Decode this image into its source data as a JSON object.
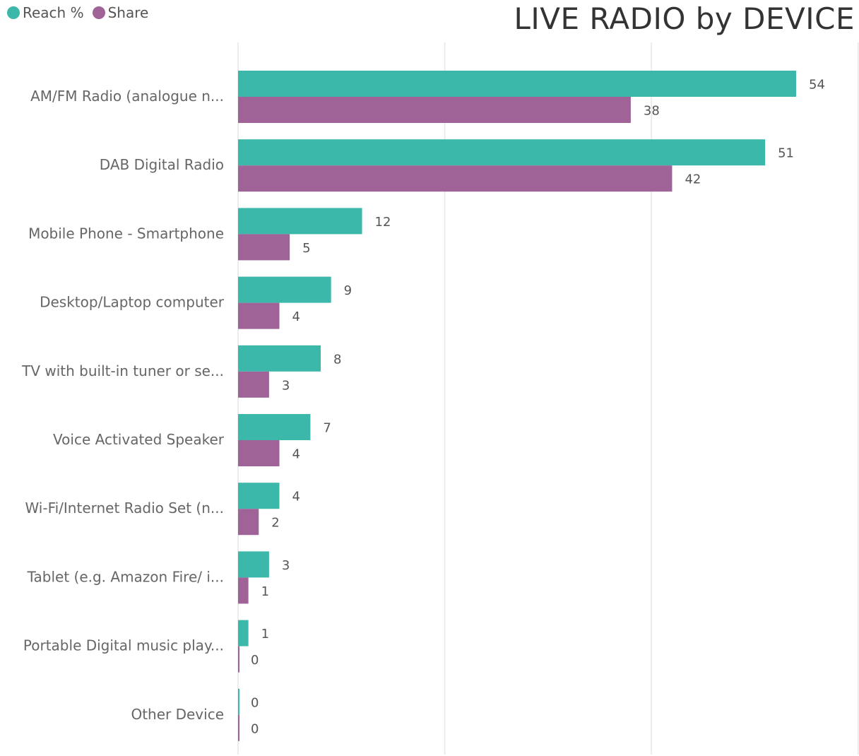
{
  "chart_data": {
    "type": "bar",
    "orientation": "horizontal",
    "title": "LIVE RADIO by DEVICE",
    "categories": [
      "AM/FM Radio (analogue n...",
      "DAB Digital Radio",
      "Mobile Phone - Smartphone",
      "Desktop/Laptop computer",
      "TV with built-in tuner or se...",
      "Voice Activated Speaker",
      "Wi-Fi/Internet Radio Set (n...",
      "Tablet (e.g. Amazon Fire/ i...",
      "Portable Digital music play...",
      "Other Device"
    ],
    "series": [
      {
        "name": "Reach %",
        "color": "#3BB8A9",
        "values": [
          54,
          51,
          12,
          9,
          8,
          7,
          4,
          3,
          1,
          0
        ]
      },
      {
        "name": "Share",
        "color": "#A06397",
        "values": [
          38,
          42,
          5,
          4,
          3,
          4,
          2,
          1,
          0,
          0
        ]
      }
    ],
    "xlim": [
      0,
      60
    ],
    "grid": true,
    "legend_position": "top-left"
  }
}
